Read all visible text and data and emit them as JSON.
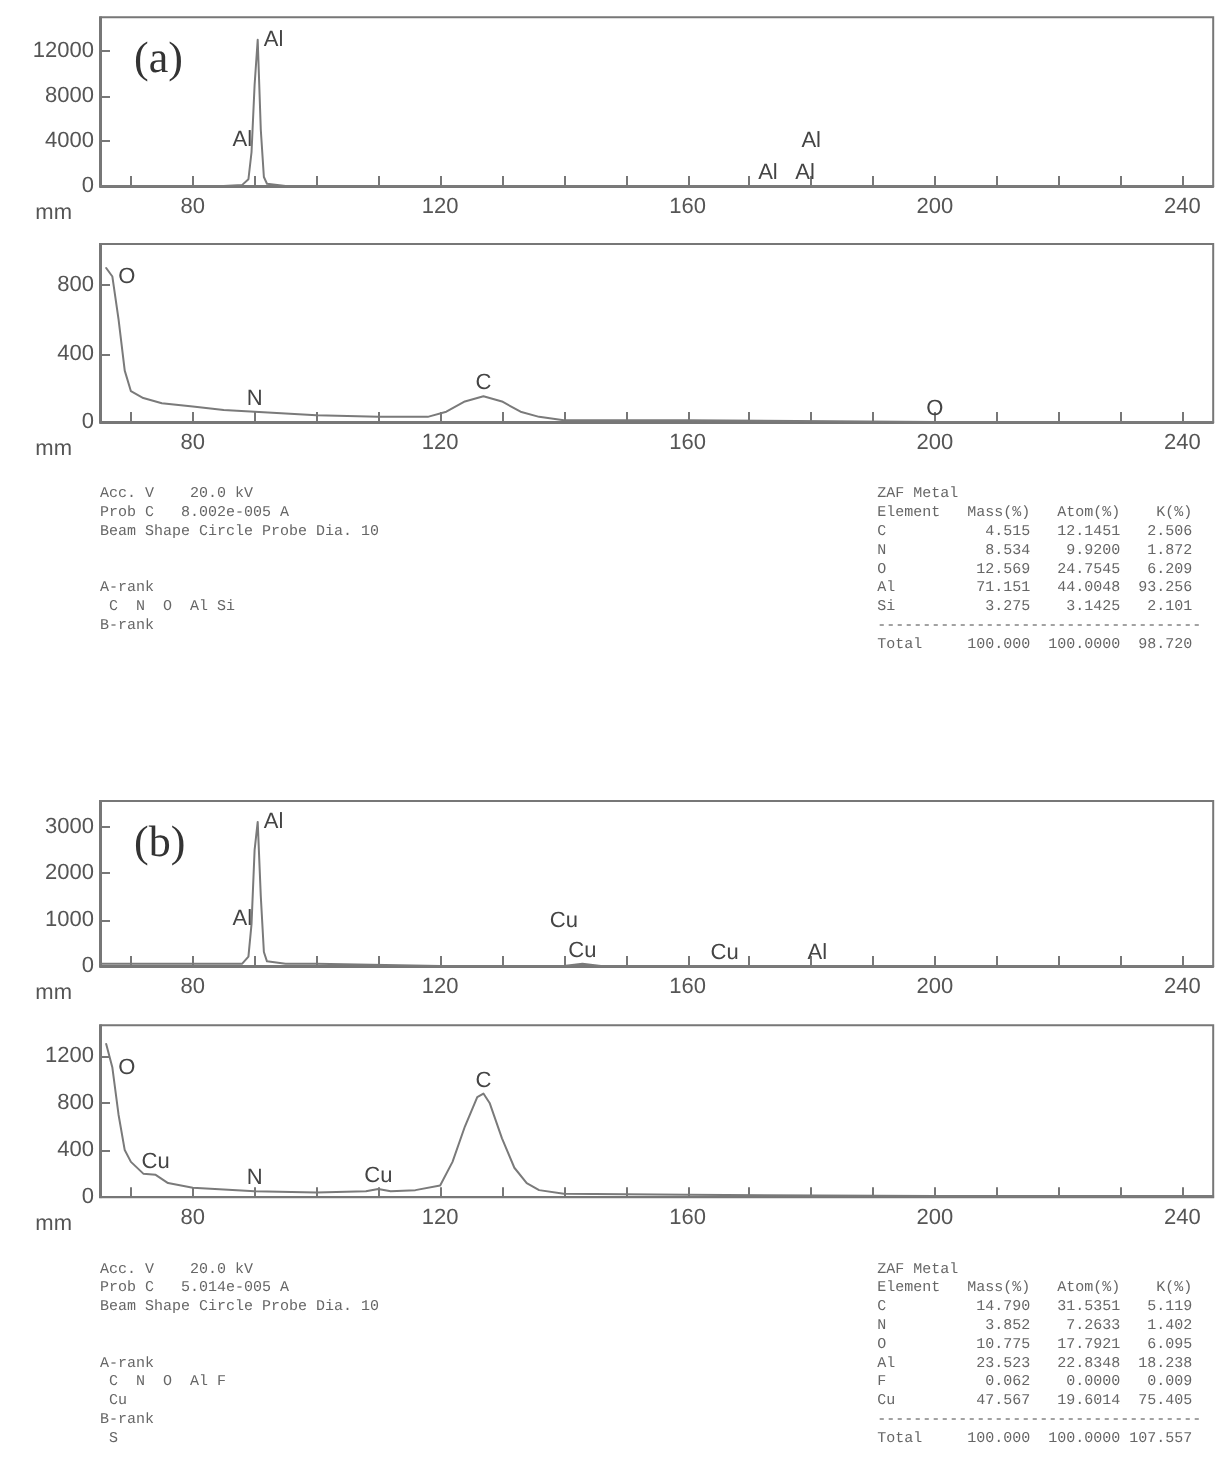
{
  "chart_data": [
    {
      "type": "line",
      "title": "(a)",
      "xlabel": "mm",
      "xlim": [
        65,
        245
      ],
      "ylim": [
        0,
        15000
      ],
      "yticks": [
        0,
        4000,
        8000,
        12000
      ],
      "grid": false,
      "marker": "none",
      "xticks": [
        {
          "value": 70,
          "label": null
        },
        80,
        {
          "value": 90,
          "label": null
        },
        {
          "value": 100,
          "label": null
        },
        {
          "value": 110,
          "label": null
        },
        120,
        {
          "value": 130,
          "label": null
        },
        {
          "value": 140,
          "label": null
        },
        {
          "value": 150,
          "label": null
        },
        160,
        {
          "value": 170,
          "label": null
        },
        {
          "value": 180,
          "label": null
        },
        {
          "value": 190,
          "label": null
        },
        200,
        {
          "value": 210,
          "label": null
        },
        {
          "value": 220,
          "label": null
        },
        {
          "value": 230,
          "label": null
        },
        240
      ],
      "series": [
        {
          "color": "#7a7a7a",
          "x": [
            65,
            70,
            80,
            85,
            88,
            89,
            89.5,
            90,
            90.5,
            91,
            91.5,
            92,
            95,
            100,
            120,
            150,
            172,
            173,
            174,
            179,
            180,
            181,
            200,
            240,
            245
          ],
          "values": [
            0,
            0,
            0,
            0,
            100,
            600,
            3000,
            9000,
            13000,
            5000,
            800,
            200,
            0,
            0,
            0,
            0,
            0,
            0,
            0,
            0,
            0,
            0,
            0,
            0,
            0
          ]
        }
      ],
      "annotations": [
        {
          "text": "Al",
          "x": 90.5,
          "y": 13000
        },
        {
          "text": "Al",
          "x": 88,
          "y": 100
        },
        {
          "text": "Al",
          "x": 173,
          "y": 0
        },
        {
          "text": "Al",
          "x": 179,
          "y": 0
        },
        {
          "text": "Al",
          "x": 180,
          "y": 0
        }
      ]
    },
    {
      "type": "line",
      "xlabel": "mm",
      "xlim": [
        65,
        245
      ],
      "ylim": [
        0,
        1040
      ],
      "yticks": [
        0,
        400,
        800
      ],
      "grid": false,
      "marker": "none",
      "xticks": [
        {
          "value": 70,
          "label": null
        },
        80,
        {
          "value": 90,
          "label": null
        },
        {
          "value": 100,
          "label": null
        },
        {
          "value": 110,
          "label": null
        },
        120,
        {
          "value": 130,
          "label": null
        },
        {
          "value": 140,
          "label": null
        },
        {
          "value": 150,
          "label": null
        },
        160,
        {
          "value": 170,
          "label": null
        },
        {
          "value": 180,
          "label": null
        },
        {
          "value": 190,
          "label": null
        },
        200,
        {
          "value": 210,
          "label": null
        },
        {
          "value": 220,
          "label": null
        },
        {
          "value": 230,
          "label": null
        },
        240
      ],
      "series": [
        {
          "color": "#7a7a7a",
          "x": [
            66,
            67,
            68,
            69,
            70,
            72,
            75,
            80,
            85,
            90,
            100,
            110,
            118,
            121,
            124,
            127,
            130,
            133,
            136,
            140,
            150,
            160,
            200,
            240,
            245
          ],
          "values": [
            900,
            850,
            600,
            300,
            180,
            140,
            110,
            90,
            70,
            60,
            40,
            30,
            30,
            60,
            120,
            150,
            120,
            60,
            30,
            10,
            10,
            10,
            0,
            0,
            0
          ]
        }
      ],
      "annotations": [
        {
          "text": "O",
          "x": 67,
          "y": 850
        },
        {
          "text": "N",
          "x": 90,
          "y": 60
        },
        {
          "text": "C",
          "x": 127,
          "y": 150
        },
        {
          "text": "O",
          "x": 200,
          "y": 0
        },
        "Acc. V    20.0 kV\nProb C   8.002e-005 A\nBeam Shape Circle Probe Dia. 10\n\n\nA-rank\n C  N  O  Al Si\nB-rank",
        "ZAF Metal\nElement   Mass(%)   Atom(%)    K(%)\nC           4.515   12.1451   2.506\nN           8.534    9.9200   1.872\nO          12.569   24.7545   6.209\nAl         71.151   44.0048  93.256\nSi          3.275    3.1425   2.101\n------------------------------------\nTotal     100.000  100.0000  98.720"
      ]
    },
    {
      "type": "line",
      "title": "(b)",
      "xlabel": "mm",
      "xlim": [
        65,
        245
      ],
      "ylim": [
        0,
        3550
      ],
      "yticks": [
        0,
        1000,
        2000,
        3000
      ],
      "grid": false,
      "marker": "none",
      "xticks": [
        {
          "value": 70,
          "label": null
        },
        80,
        {
          "value": 90,
          "label": null
        },
        {
          "value": 100,
          "label": null
        },
        {
          "value": 110,
          "label": null
        },
        120,
        {
          "value": 130,
          "label": null
        },
        {
          "value": 140,
          "label": null
        },
        {
          "value": 150,
          "label": null
        },
        160,
        {
          "value": 170,
          "label": null
        },
        {
          "value": 180,
          "label": null
        },
        {
          "value": 190,
          "label": null
        },
        200,
        {
          "value": 210,
          "label": null
        },
        {
          "value": 220,
          "label": null
        },
        {
          "value": 230,
          "label": null
        },
        240
      ],
      "series": [
        {
          "color": "#7a7a7a",
          "x": [
            65,
            70,
            80,
            85,
            88,
            89,
            89.5,
            90,
            90.5,
            91,
            91.5,
            92,
            95,
            100,
            120,
            140,
            143,
            146,
            150,
            166,
            170,
            181,
            200,
            240,
            245
          ],
          "values": [
            50,
            50,
            50,
            50,
            50,
            200,
            900,
            2500,
            3100,
            1500,
            300,
            100,
            50,
            50,
            0,
            0,
            50,
            0,
            0,
            0,
            0,
            0,
            0,
            0,
            0
          ]
        }
      ],
      "annotations": [
        {
          "text": "Al",
          "x": 90.5,
          "y": 3100
        },
        {
          "text": "Al",
          "x": 88,
          "y": 50
        },
        {
          "text": "Cu",
          "x": 143,
          "y": 50
        },
        {
          "text": "Cu",
          "x": 140,
          "y": 0
        },
        {
          "text": "Cu",
          "x": 166,
          "y": 0
        },
        {
          "text": "Al",
          "x": 181,
          "y": 0
        }
      ]
    },
    {
      "type": "line",
      "xlabel": "mm",
      "xlim": [
        65,
        245
      ],
      "ylim": [
        0,
        1460
      ],
      "yticks": [
        0,
        400,
        800,
        1200
      ],
      "grid": false,
      "marker": "none",
      "xticks": [
        {
          "value": 70,
          "label": null
        },
        80,
        {
          "value": 90,
          "label": null
        },
        {
          "value": 100,
          "label": null
        },
        {
          "value": 110,
          "label": null
        },
        120,
        {
          "value": 130,
          "label": null
        },
        {
          "value": 140,
          "label": null
        },
        {
          "value": 150,
          "label": null
        },
        160,
        {
          "value": 170,
          "label": null
        },
        {
          "value": 180,
          "label": null
        },
        {
          "value": 190,
          "label": null
        },
        200,
        {
          "value": 210,
          "label": null
        },
        {
          "value": 220,
          "label": null
        },
        {
          "value": 230,
          "label": null
        },
        240
      ],
      "series": [
        {
          "color": "#7a7a7a",
          "x": [
            66,
            67,
            68,
            69,
            70,
            72,
            74,
            76,
            80,
            90,
            100,
            108,
            110,
            112,
            116,
            120,
            122,
            124,
            126,
            127,
            128,
            130,
            132,
            134,
            136,
            140,
            160,
            200,
            240,
            245
          ],
          "values": [
            1300,
            1100,
            700,
            400,
            300,
            200,
            190,
            120,
            80,
            50,
            40,
            50,
            70,
            50,
            60,
            100,
            300,
            600,
            850,
            880,
            800,
            500,
            250,
            120,
            60,
            30,
            20,
            10,
            10,
            10
          ]
        }
      ],
      "annotations": [
        {
          "text": "O",
          "x": 67,
          "y": 1100
        },
        {
          "text": "Cu",
          "x": 74,
          "y": 190
        },
        {
          "text": "N",
          "x": 90,
          "y": 50
        },
        {
          "text": "Cu",
          "x": 110,
          "y": 70
        },
        {
          "text": "C",
          "x": 127,
          "y": 880
        },
        "Acc. V    20.0 kV\nProb C   5.014e-005 A\nBeam Shape Circle Probe Dia. 10\n\n\nA-rank\n C  N  O  Al F\n Cu\nB-rank\n S",
        "ZAF Metal\nElement   Mass(%)   Atom(%)    K(%)\nC          14.790   31.5351   5.119\nN           3.852    7.2633   1.402\nO          10.775   17.7921   6.095\nAl         23.523   22.8348  18.238\nF           0.062    0.0000   0.009\nCu         47.567   19.6014  75.405\n------------------------------------\nTotal     100.000  100.0000 107.557"
      ]
    }
  ]
}
